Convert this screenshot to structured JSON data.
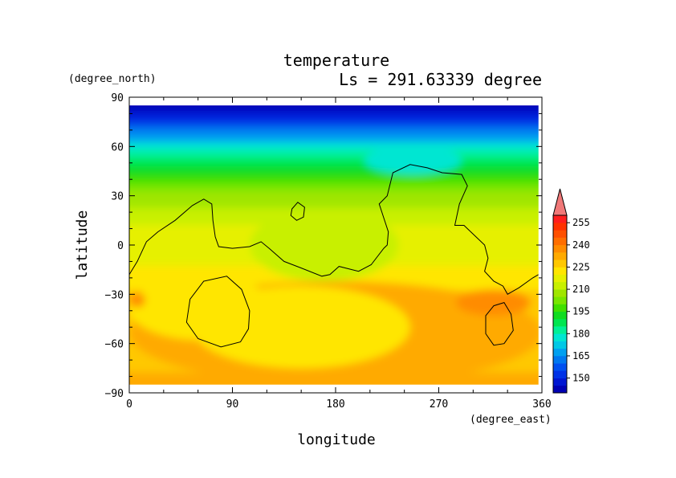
{
  "chart_data": {
    "type": "heatmap",
    "title": "temperature",
    "subtitle": "Ls = 291.63339 degree",
    "xlabel": "longitude",
    "ylabel": "latitude",
    "x_units": "(degree_east)",
    "y_units": "(degree_north)",
    "xlim": [
      0,
      360
    ],
    "ylim": [
      -90,
      90
    ],
    "data_extent": {
      "lon": [
        0,
        357
      ],
      "lat": [
        -85,
        85
      ]
    },
    "x_ticks": [
      0,
      90,
      180,
      270,
      360
    ],
    "y_ticks": [
      90,
      60,
      30,
      0,
      -30,
      -60,
      -90
    ],
    "colorbar": {
      "levels": [
        140,
        145,
        150,
        155,
        160,
        165,
        170,
        175,
        180,
        185,
        190,
        195,
        200,
        205,
        210,
        215,
        220,
        225,
        230,
        235,
        240,
        245,
        250,
        255,
        260
      ],
      "tick_labels": [
        150,
        165,
        180,
        195,
        210,
        225,
        240,
        255
      ],
      "colors": [
        "#0000b4",
        "#0016d2",
        "#0032e6",
        "#0050f0",
        "#0078f0",
        "#00a0f0",
        "#00c8e6",
        "#00e6d2",
        "#00f096",
        "#00e650",
        "#10dc20",
        "#40e000",
        "#78e600",
        "#a0e600",
        "#c8f000",
        "#e6f000",
        "#ffe600",
        "#ffc800",
        "#ffaa00",
        "#ff8c00",
        "#ff6e00",
        "#ff5000",
        "#ff3200",
        "#ff1e1e"
      ],
      "extend_max_color": "#f07878"
    },
    "zonal_mean_temperature": [
      {
        "lat": 85,
        "t": 142
      },
      {
        "lat": 80,
        "t": 145
      },
      {
        "lat": 75,
        "t": 152
      },
      {
        "lat": 70,
        "t": 160
      },
      {
        "lat": 65,
        "t": 168
      },
      {
        "lat": 60,
        "t": 175
      },
      {
        "lat": 55,
        "t": 181
      },
      {
        "lat": 50,
        "t": 187
      },
      {
        "lat": 45,
        "t": 192
      },
      {
        "lat": 40,
        "t": 197
      },
      {
        "lat": 35,
        "t": 201
      },
      {
        "lat": 30,
        "t": 205
      },
      {
        "lat": 25,
        "t": 208
      },
      {
        "lat": 20,
        "t": 211
      },
      {
        "lat": 15,
        "t": 213
      },
      {
        "lat": 10,
        "t": 215
      },
      {
        "lat": 5,
        "t": 216
      },
      {
        "lat": 0,
        "t": 217
      },
      {
        "lat": -5,
        "t": 218
      },
      {
        "lat": -10,
        "t": 219
      },
      {
        "lat": -15,
        "t": 220
      },
      {
        "lat": -20,
        "t": 221
      },
      {
        "lat": -25,
        "t": 224
      },
      {
        "lat": -30,
        "t": 227
      },
      {
        "lat": -35,
        "t": 229
      },
      {
        "lat": -40,
        "t": 229
      },
      {
        "lat": -45,
        "t": 229
      },
      {
        "lat": -50,
        "t": 228
      },
      {
        "lat": -55,
        "t": 228
      },
      {
        "lat": -60,
        "t": 228
      },
      {
        "lat": -65,
        "t": 228
      },
      {
        "lat": -70,
        "t": 228
      },
      {
        "lat": -75,
        "t": 229
      },
      {
        "lat": -80,
        "t": 230
      },
      {
        "lat": -85,
        "t": 230
      }
    ],
    "regional_features": [
      {
        "feature": "warm band",
        "lon": [
          0,
          360
        ],
        "lat": [
          -85,
          -22
        ],
        "t": 230
      },
      {
        "feature": "cool basin",
        "lon": [
          55,
          245
        ],
        "lat": [
          -75,
          -25
        ],
        "t": 222
      },
      {
        "feature": "cool basin",
        "lon": [
          0,
          130
        ],
        "lat": [
          -58,
          -20
        ],
        "t": 222
      },
      {
        "feature": "warm spot",
        "lon": [
          285,
          350
        ],
        "lat": [
          -43,
          -27
        ],
        "t": 237
      },
      {
        "feature": "warm spot",
        "lon": [
          0,
          14
        ],
        "lat": [
          -38,
          -29
        ],
        "t": 237
      },
      {
        "feature": "cool plateau",
        "lon": [
          105,
          235
        ],
        "lat": [
          -22,
          22
        ],
        "t": 213
      },
      {
        "feature": "cold pocket",
        "lon": [
          205,
          290
        ],
        "lat": [
          43,
          60
        ],
        "t": 178
      }
    ],
    "topography_contours": [
      {
        "name": "continent",
        "points": [
          [
            0,
            -18
          ],
          [
            7,
            -10
          ],
          [
            15,
            2
          ],
          [
            25,
            8
          ],
          [
            40,
            15
          ],
          [
            55,
            24
          ],
          [
            65,
            28
          ],
          [
            72,
            25
          ],
          [
            73,
            15
          ],
          [
            75,
            5
          ],
          [
            78,
            -1
          ],
          [
            90,
            -2
          ],
          [
            105,
            -1
          ],
          [
            115,
            2
          ],
          [
            122,
            -2
          ],
          [
            135,
            -10
          ],
          [
            150,
            -14
          ],
          [
            168,
            -19
          ],
          [
            175,
            -18
          ],
          [
            183,
            -13
          ],
          [
            200,
            -16
          ],
          [
            211,
            -12
          ],
          [
            222,
            -2
          ],
          [
            225,
            0
          ],
          [
            226,
            8
          ],
          [
            218,
            25
          ],
          [
            225,
            30
          ],
          [
            230,
            44
          ],
          [
            245,
            49
          ],
          [
            260,
            47
          ],
          [
            273,
            44
          ],
          [
            290,
            43
          ],
          [
            295,
            36
          ],
          [
            288,
            25
          ],
          [
            284,
            12
          ],
          [
            292,
            12
          ],
          [
            310,
            0
          ],
          [
            313,
            -8
          ],
          [
            310,
            -16
          ],
          [
            318,
            -22
          ],
          [
            326,
            -25
          ],
          [
            330,
            -30
          ],
          [
            340,
            -26
          ],
          [
            352,
            -20
          ],
          [
            357,
            -18
          ]
        ]
      },
      {
        "name": "island",
        "points": [
          [
            142,
            22
          ],
          [
            147,
            26
          ],
          [
            153,
            23
          ],
          [
            152,
            17
          ],
          [
            146,
            15
          ],
          [
            141,
            18
          ]
        ]
      },
      {
        "name": "crater-west",
        "points": [
          [
            85,
            -19
          ],
          [
            98,
            -27
          ],
          [
            105,
            -40
          ],
          [
            104,
            -51
          ],
          [
            97,
            -59
          ],
          [
            80,
            -62
          ],
          [
            60,
            -57
          ],
          [
            50,
            -47
          ],
          [
            53,
            -33
          ],
          [
            65,
            -22
          ]
        ]
      },
      {
        "name": "crater-east",
        "points": [
          [
            327,
            -35
          ],
          [
            333,
            -42
          ],
          [
            335,
            -52
          ],
          [
            327,
            -60
          ],
          [
            318,
            -61
          ],
          [
            311,
            -54
          ],
          [
            311,
            -43
          ],
          [
            318,
            -37
          ]
        ]
      }
    ]
  }
}
